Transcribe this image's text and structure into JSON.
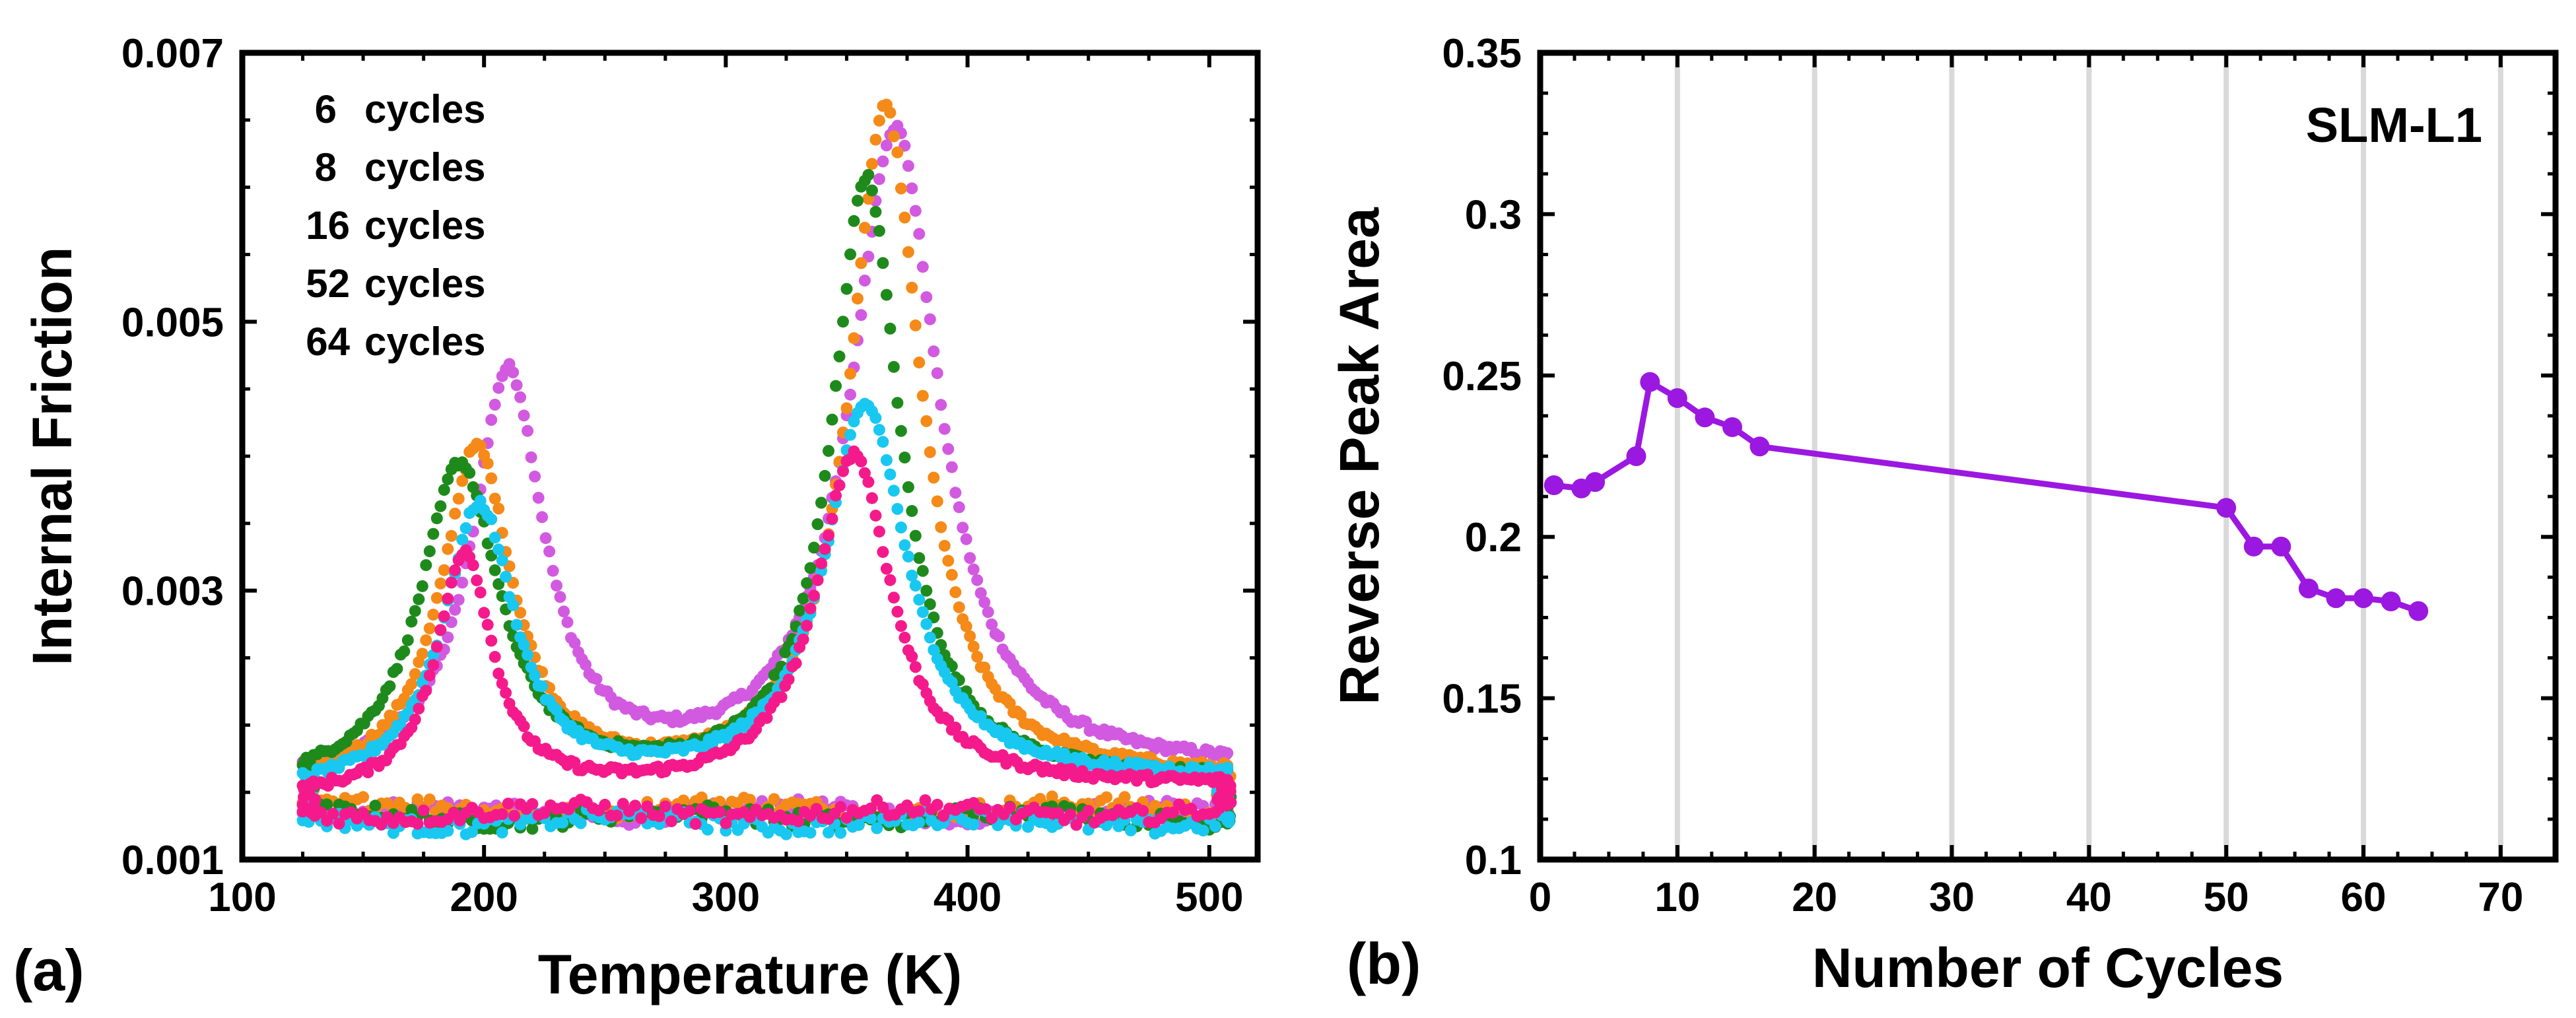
{
  "chart_data": [
    {
      "panel": "(a)",
      "type": "scatter",
      "title": "",
      "xlabel": "Temperature (K)",
      "ylabel": "Internal Friction",
      "xlim": [
        100,
        520
      ],
      "ylim": [
        0.001,
        0.007
      ],
      "xticks": [
        100,
        200,
        300,
        400,
        500
      ],
      "yticks": [
        0.001,
        0.003,
        0.005,
        0.007
      ],
      "xtick_labels": [
        "100",
        "200",
        "300",
        "400",
        "500"
      ],
      "ytick_labels": [
        "0.001",
        "0.003",
        "0.005",
        "0.007"
      ],
      "legend_position": "top-left",
      "series": [
        {
          "name": "6 cycles",
          "label_number": "6",
          "label_unit": "cycles",
          "color": "#d25ae0",
          "heating_peaks": [
            {
              "T": 210,
              "height": 0.003,
              "width": 18
            },
            {
              "T": 370,
              "height": 0.0048,
              "width": 22
            }
          ],
          "heating_base": [
            0.00155,
            0.00165
          ],
          "cooling_level": 0.00135
        },
        {
          "name": "8 cycles",
          "label_number": "8",
          "label_unit": "cycles",
          "color": "#f58a18",
          "heating_peaks": [
            {
              "T": 197,
              "height": 0.0025,
              "width": 18
            },
            {
              "T": 366,
              "height": 0.005,
              "width": 18
            }
          ],
          "heating_base": [
            0.0015,
            0.0016
          ],
          "cooling_level": 0.00138
        },
        {
          "name": "16 cycles",
          "label_number": "16",
          "label_unit": "cycles",
          "color": "#1f8a1c",
          "heating_peaks": [
            {
              "T": 190,
              "height": 0.0024,
              "width": 20
            },
            {
              "T": 358,
              "height": 0.0045,
              "width": 17
            }
          ],
          "heating_base": [
            0.0015,
            0.00158
          ],
          "cooling_level": 0.00132
        },
        {
          "name": "52 cycles",
          "label_number": "52",
          "label_unit": "cycles",
          "color": "#18c8f0",
          "heating_peaks": [
            {
              "T": 198,
              "height": 0.0021,
              "width": 18
            },
            {
              "T": 358,
              "height": 0.0028,
              "width": 21
            }
          ],
          "heating_base": [
            0.00148,
            0.0016
          ],
          "cooling_level": 0.00128
        },
        {
          "name": "64 cycles",
          "label_number": "64",
          "label_unit": "cycles",
          "color": "#f51a8c",
          "heating_peaks": [
            {
              "T": 192,
              "height": 0.0018,
              "width": 14
            },
            {
              "T": 353,
              "height": 0.0025,
              "width": 19
            }
          ],
          "heating_base": [
            0.00145,
            0.00155
          ],
          "cooling_level": 0.00135
        }
      ]
    },
    {
      "panel": "(b)",
      "type": "line",
      "title": "",
      "xlabel": "Number of Cycles",
      "ylabel": "Reverse Peak Area",
      "xlim": [
        0,
        74
      ],
      "ylim": [
        0.1,
        0.35
      ],
      "xticks": [
        0,
        10,
        20,
        30,
        40,
        50,
        60,
        70
      ],
      "yticks": [
        0.1,
        0.15,
        0.2,
        0.25,
        0.3,
        0.35
      ],
      "xtick_labels": [
        "0",
        "10",
        "20",
        "30",
        "40",
        "50",
        "60",
        "70"
      ],
      "ytick_labels": [
        "0.1",
        "0.15",
        "0.2",
        "0.25",
        "0.3",
        "0.35"
      ],
      "vertical_gridlines": [
        10,
        20,
        30,
        40,
        50,
        60,
        70
      ],
      "annotation": "SLM-L1",
      "color": "#9b18e0",
      "series": [
        {
          "name": "SLM-L1",
          "x": [
            1,
            3,
            4,
            7,
            8,
            10,
            12,
            14,
            16,
            50,
            52,
            54,
            56,
            58,
            60,
            62,
            64
          ],
          "y": [
            0.216,
            0.215,
            0.217,
            0.225,
            0.248,
            0.243,
            0.237,
            0.234,
            0.228,
            0.209,
            0.197,
            0.197,
            0.184,
            0.181,
            0.181,
            0.18,
            0.177
          ]
        }
      ]
    }
  ]
}
